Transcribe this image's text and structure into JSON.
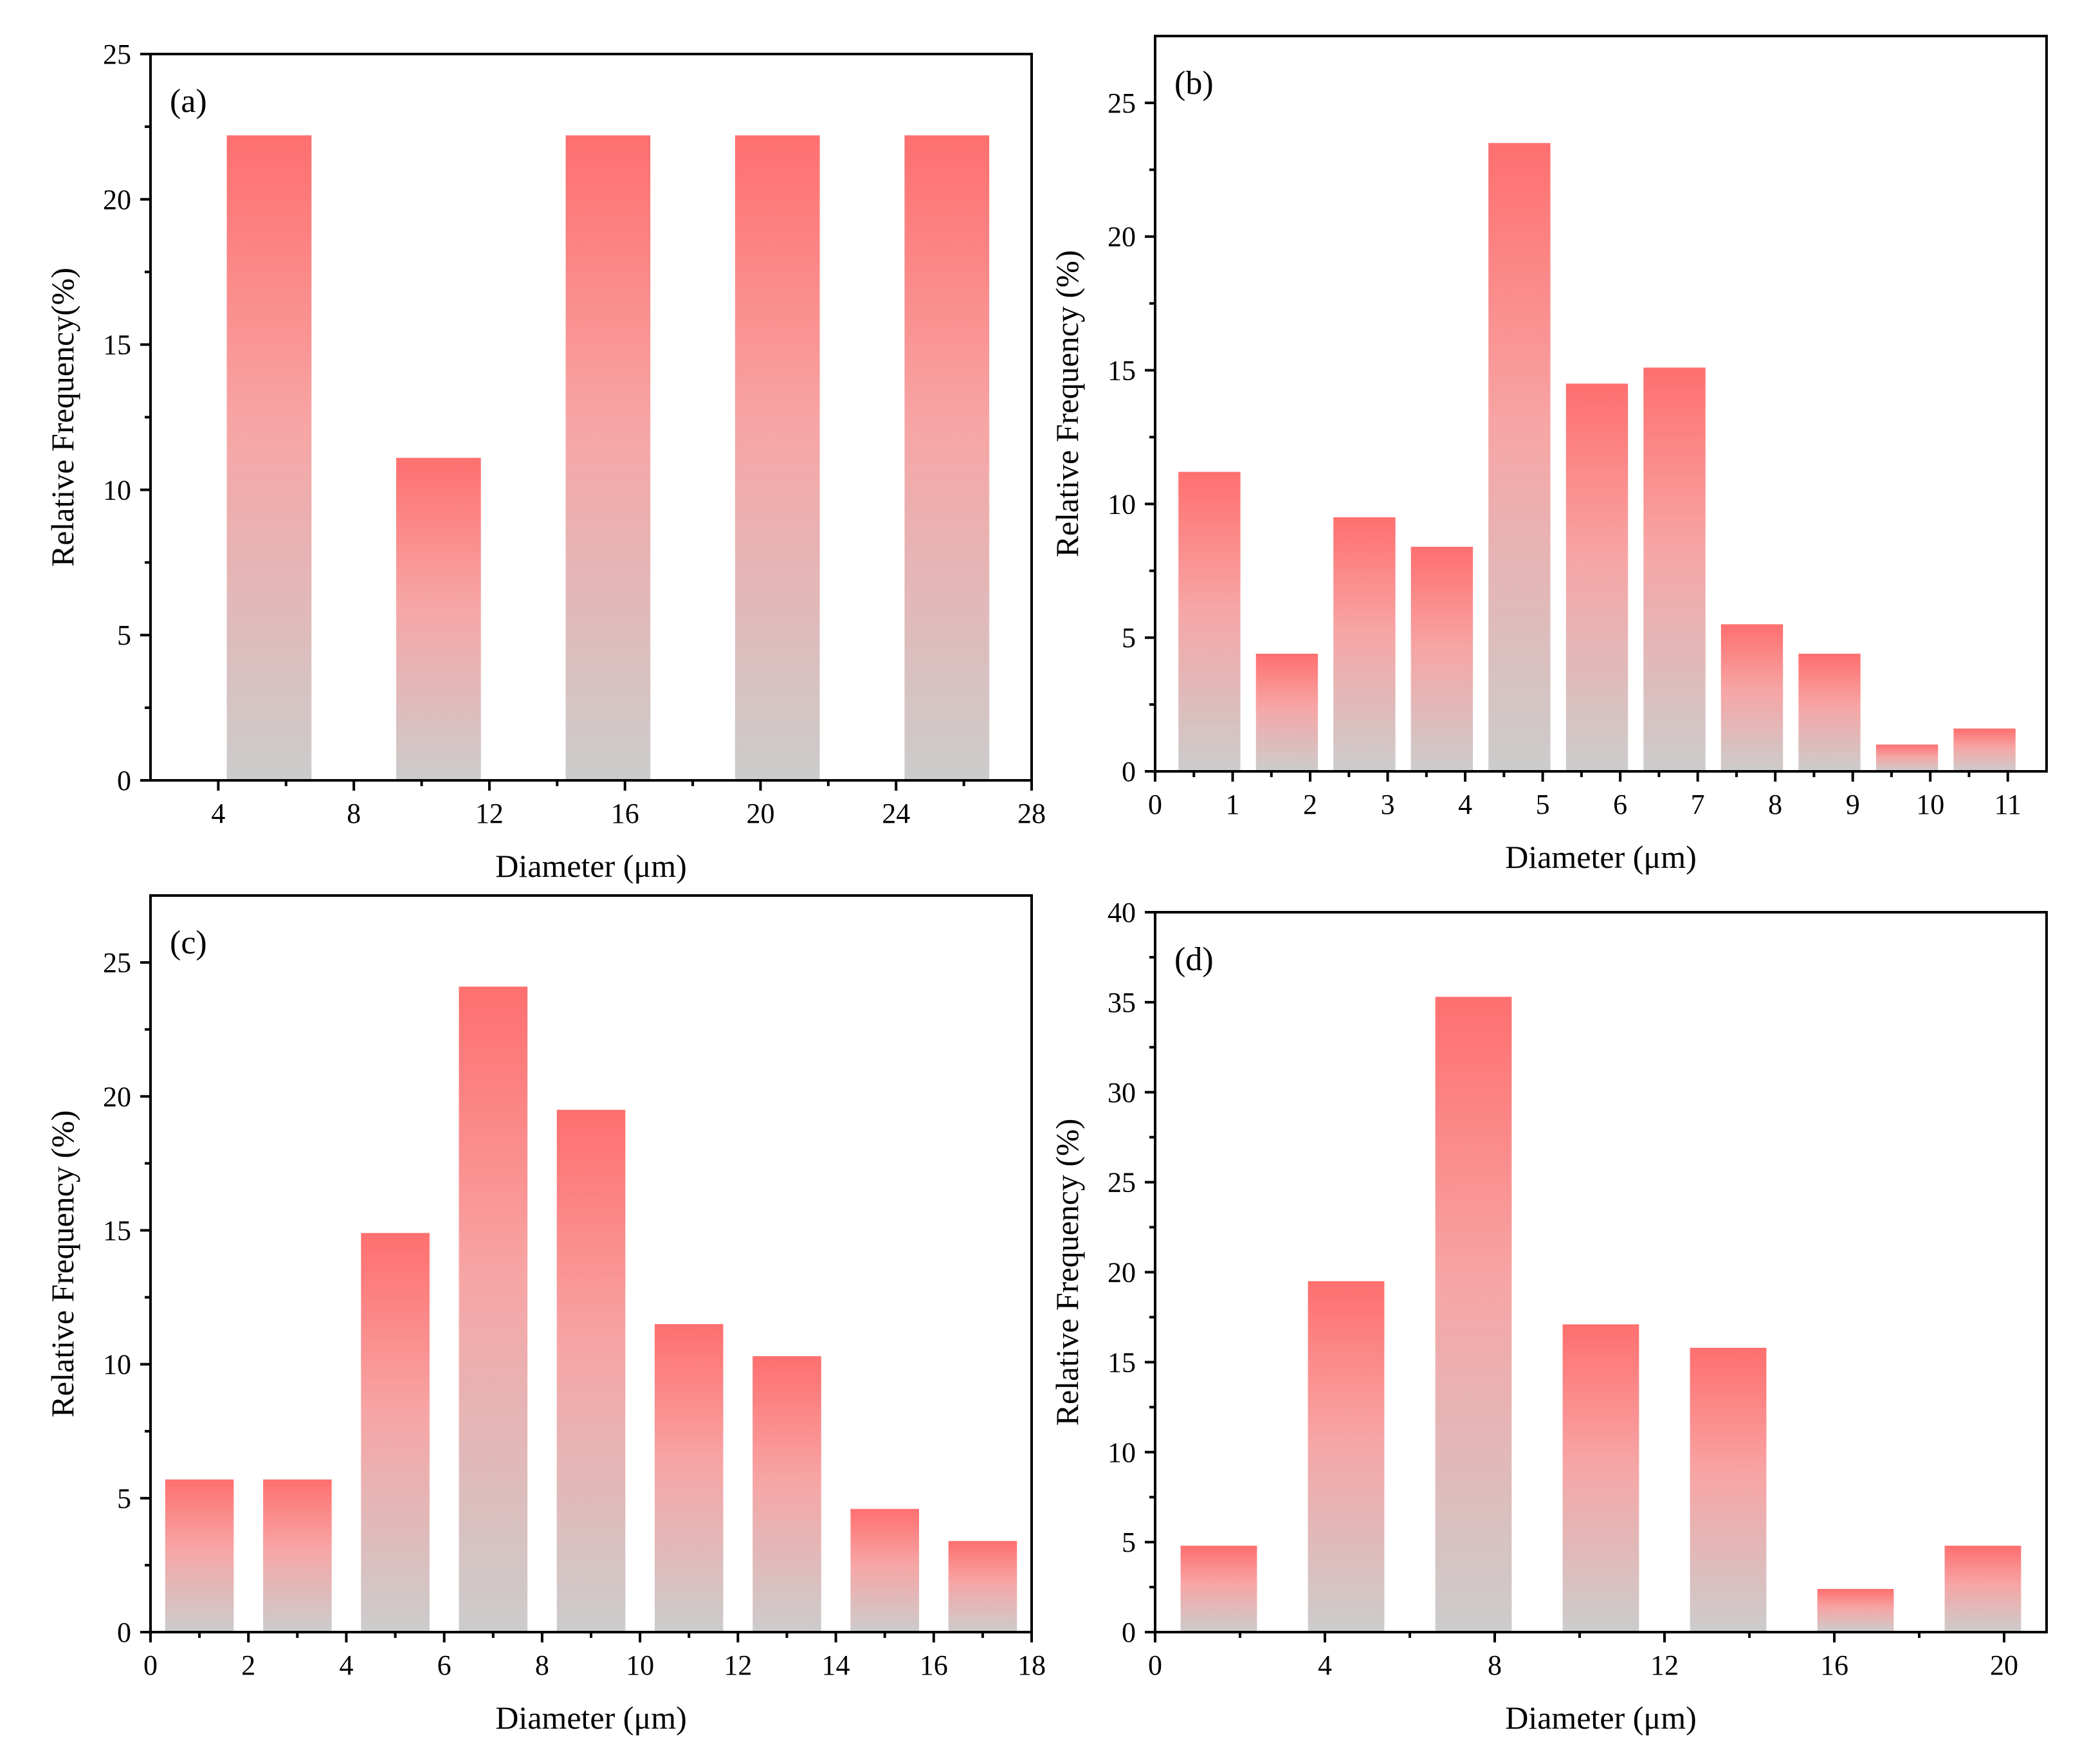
{
  "chart_data": [
    {
      "type": "bar",
      "panel_label": "(a)",
      "xlabel": "Diameter (μm)",
      "ylabel": "Relative Frequency(%)",
      "xlim": [
        2,
        28
      ],
      "ylim": [
        0,
        25
      ],
      "xticks": [
        4,
        8,
        12,
        16,
        20,
        24,
        28
      ],
      "yticks": [
        0,
        5,
        10,
        15,
        20,
        25
      ],
      "bar_width": 2.5,
      "x": [
        5.5,
        10.5,
        15.5,
        20.5,
        25.5
      ],
      "values": [
        22.2,
        11.1,
        22.2,
        22.2,
        22.2
      ],
      "grid": false
    },
    {
      "type": "bar",
      "panel_label": "(b)",
      "xlabel": "Diameter (μm)",
      "ylabel": "Relative Frequency (%)",
      "xlim": [
        0,
        11.5
      ],
      "ylim": [
        0,
        27.5
      ],
      "xticks": [
        0,
        1,
        2,
        3,
        4,
        5,
        6,
        7,
        8,
        9,
        10,
        11
      ],
      "yticks": [
        0,
        5,
        10,
        15,
        20,
        25
      ],
      "bar_width": 0.8,
      "x": [
        0.7,
        1.7,
        2.7,
        3.7,
        4.7,
        5.7,
        6.7,
        7.7,
        8.7,
        9.7,
        10.7
      ],
      "values": [
        11.2,
        4.4,
        9.5,
        8.4,
        23.5,
        14.5,
        15.1,
        5.5,
        4.4,
        1.0,
        1.6
      ],
      "grid": false
    },
    {
      "type": "bar",
      "panel_label": "(c)",
      "xlabel": "Diameter (μm)",
      "ylabel": "Relative Frequency (%)",
      "xlim": [
        0,
        18
      ],
      "ylim": [
        0,
        27.5
      ],
      "xticks": [
        0,
        2,
        4,
        6,
        8,
        10,
        12,
        14,
        16,
        18
      ],
      "yticks": [
        0,
        5,
        10,
        15,
        20,
        25
      ],
      "bar_width": 1.4,
      "x": [
        1,
        3,
        5,
        7,
        9,
        11,
        13,
        15,
        17
      ],
      "values": [
        5.7,
        5.7,
        14.9,
        24.1,
        19.5,
        11.5,
        10.3,
        4.6,
        3.4
      ],
      "grid": false
    },
    {
      "type": "bar",
      "panel_label": "(d)",
      "xlabel": "Diameter (μm)",
      "ylabel": "Relative Frequency (%)",
      "xlim": [
        0,
        21
      ],
      "ylim": [
        0,
        40
      ],
      "xticks": [
        0,
        4,
        8,
        12,
        16,
        20
      ],
      "yticks": [
        0,
        5,
        10,
        15,
        20,
        25,
        30,
        35,
        40
      ],
      "bar_width": 1.8,
      "x": [
        1.5,
        4.5,
        7.5,
        10.5,
        13.5,
        16.5,
        19.5
      ],
      "values": [
        4.8,
        19.5,
        35.3,
        17.1,
        15.8,
        2.4,
        4.8
      ],
      "grid": false
    }
  ],
  "colors": {
    "bar_top": "#ff6f6f",
    "bar_mid": "#f7a9a9",
    "bar_bottom": "#cccccc",
    "axis": "#000000"
  }
}
